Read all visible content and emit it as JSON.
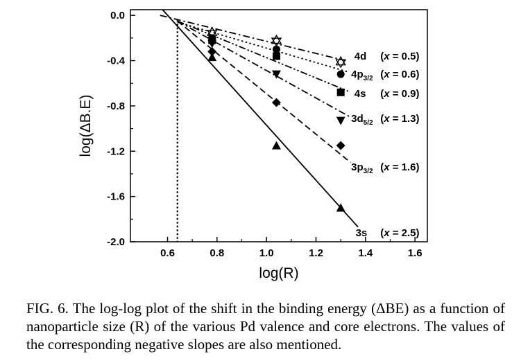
{
  "chart_data": {
    "type": "line",
    "xlabel": "log(R)",
    "ylabel": "log(ΔB.E)",
    "xlim": [
      0.45,
      1.65
    ],
    "ylim": [
      -2.0,
      0.05
    ],
    "xticks": [
      0.6,
      0.8,
      1.0,
      1.2,
      1.4,
      1.6
    ],
    "xtick_labels": [
      "0.6",
      "0.8",
      "1.0",
      "1.2",
      "1.4",
      "1.6"
    ],
    "yticks": [
      0.0,
      -0.4,
      -0.8,
      -1.2,
      -1.6,
      -2.0
    ],
    "ytick_labels": [
      "0.0",
      "-0.4",
      "-0.8",
      "-1.2",
      "-1.6",
      "-2.0"
    ],
    "reference_line_x": 0.64,
    "series": [
      {
        "name": "4d",
        "sub": "",
        "slope_text": "(x = 0.5)",
        "marker": "star",
        "dash": "dashdot",
        "x": [
          0.78,
          1.04,
          1.3
        ],
        "y": [
          -0.15,
          -0.22,
          -0.41
        ],
        "fit_x": [
          0.57,
          1.32
        ],
        "fit_y": [
          0.0,
          -0.4
        ]
      },
      {
        "name": "4p",
        "sub": "3/2",
        "slope_text": "(x = 0.6)",
        "marker": "circle",
        "dash": "dot",
        "x": [
          0.78,
          1.04,
          1.3
        ],
        "y": [
          -0.2,
          -0.3,
          -0.52
        ],
        "fit_x": [
          0.64,
          1.33
        ],
        "fit_y": [
          -0.06,
          -0.5
        ]
      },
      {
        "name": "4s",
        "sub": "",
        "slope_text": "(x = 0.9)",
        "marker": "square",
        "dash": "dashdotdot",
        "x": [
          0.78,
          1.04,
          1.3
        ],
        "y": [
          -0.22,
          -0.36,
          -0.68
        ],
        "fit_x": [
          0.64,
          1.33
        ],
        "fit_y": [
          -0.05,
          -0.67
        ]
      },
      {
        "name": "3d",
        "sub": "5/2",
        "slope_text": "(x = 1.3)",
        "marker": "triangle-down",
        "dash": "dashdot",
        "x": [
          0.78,
          1.04,
          1.3
        ],
        "y": [
          -0.25,
          -0.52,
          -0.93
        ],
        "fit_x": [
          0.64,
          1.34
        ],
        "fit_y": [
          -0.05,
          -0.9
        ]
      },
      {
        "name": "3p",
        "sub": "3/2",
        "slope_text": "(x = 1.6)",
        "marker": "diamond",
        "dash": "dash",
        "x": [
          0.78,
          1.04,
          1.3
        ],
        "y": [
          -0.32,
          -0.77,
          -1.15
        ],
        "fit_x": [
          0.64,
          1.34
        ],
        "fit_y": [
          -0.05,
          -1.3
        ]
      },
      {
        "name": "3s",
        "sub": "",
        "slope_text": "(x = 2.5)",
        "marker": "triangle-up",
        "dash": "solid",
        "x": [
          0.78,
          1.04,
          1.3
        ],
        "y": [
          -0.37,
          -1.15,
          -1.7
        ],
        "fit_x": [
          0.58,
          1.37
        ],
        "fit_y": [
          0.05,
          -1.87
        ]
      }
    ]
  },
  "caption": "FIG. 6. The log-log plot of the shift in the binding energy (ΔBE) as a function of nanoparticle size (R) of the various Pd valence and core electrons. The values of the corresponding negative slopes are also mentioned."
}
